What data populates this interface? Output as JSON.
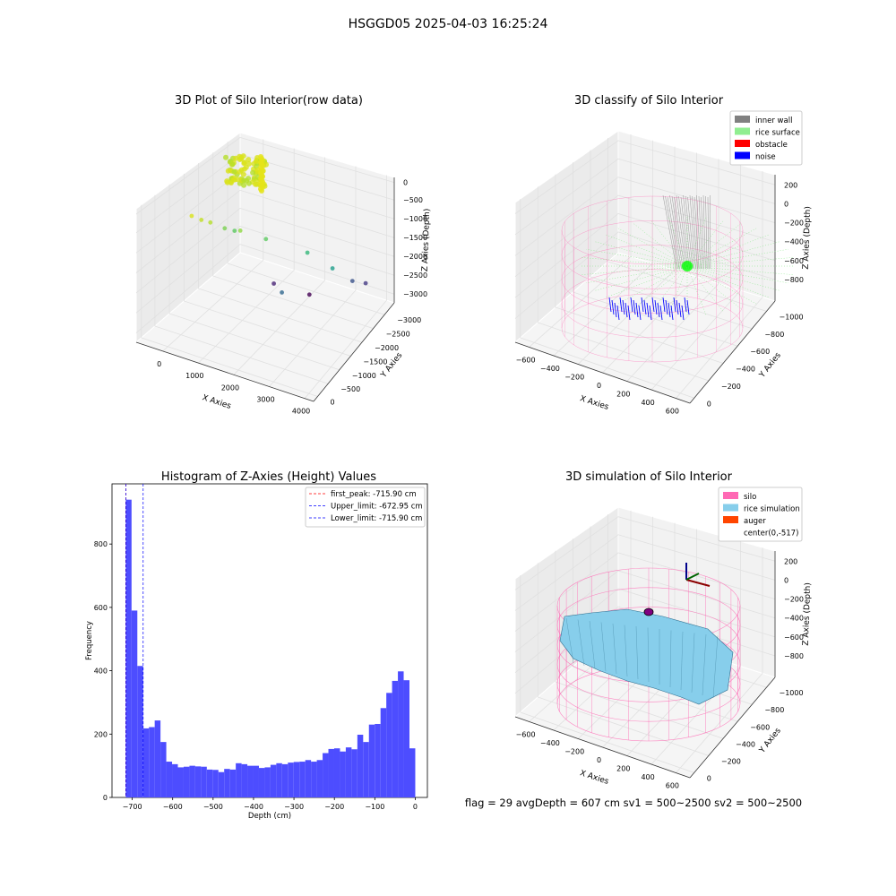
{
  "figure": {
    "suptitle": "HSGGD05 2025-04-03 16:25:24",
    "status_line": "flag = 29  avgDepth = 607 cm  sv1 = 500~2500  sv2 = 500~2500"
  },
  "chart_data": [
    {
      "type": "scatter",
      "subtype": "3d",
      "title": "3D Plot of Silo Interior(row data)",
      "xlabel": "X Axies",
      "ylabel": "Y Axies",
      "zlabel": "Z Axies (Depth)",
      "x_ticks": [
        "0",
        "1000",
        "2000",
        "3000",
        "4000"
      ],
      "y_ticks": [
        "0",
        "−500",
        "−1000",
        "−1500",
        "−2000",
        "−2500",
        "−3000"
      ],
      "z_ticks": [
        "0",
        "−500",
        "−1000",
        "−1500",
        "−2000",
        "−2500",
        "−3000"
      ],
      "colormap": "viridis",
      "points": [
        {
          "x": 400,
          "y": -200,
          "z": -100,
          "color": "#d9e21a"
        },
        {
          "x": 600,
          "y": -300,
          "z": -200,
          "color": "#c2df23"
        },
        {
          "x": 900,
          "y": -250,
          "z": -150,
          "color": "#b5de2b"
        },
        {
          "x": 1200,
          "y": -400,
          "z": -300,
          "color": "#7ad151"
        },
        {
          "x": 1500,
          "y": -600,
          "z": -400,
          "color": "#8fd744"
        },
        {
          "x": 1100,
          "y": -900,
          "z": -700,
          "color": "#5ec962"
        },
        {
          "x": 1800,
          "y": -1200,
          "z": -900,
          "color": "#5ec962"
        },
        {
          "x": 2600,
          "y": -1800,
          "z": -1400,
          "color": "#35b779"
        },
        {
          "x": 3000,
          "y": -2300,
          "z": -2000,
          "color": "#1f9e89"
        },
        {
          "x": 3400,
          "y": -2600,
          "z": -2400,
          "color": "#3b528b"
        },
        {
          "x": 3600,
          "y": -2900,
          "z": -2600,
          "color": "#443983"
        },
        {
          "x": 1500,
          "y": -2200,
          "z": -2900,
          "color": "#31688e"
        },
        {
          "x": 1000,
          "y": -2500,
          "z": -3000,
          "color": "#482475"
        },
        {
          "x": 2200,
          "y": -2400,
          "z": -2900,
          "color": "#440154"
        }
      ]
    },
    {
      "type": "scatter",
      "subtype": "3d",
      "title": "3D classify of Silo Interior",
      "xlabel": "X Axies",
      "ylabel": "Y Axies",
      "zlabel": "Z Axies (Depth)",
      "x_ticks": [
        "−600",
        "−400",
        "−200",
        "0",
        "200",
        "400",
        "600"
      ],
      "y_ticks": [
        "0",
        "−200",
        "−400",
        "−600",
        "−800",
        "−1000"
      ],
      "z_ticks": [
        "200",
        "0",
        "−200",
        "−400",
        "−600",
        "−800"
      ],
      "legend": [
        {
          "label": "inner wall",
          "color": "#808080"
        },
        {
          "label": "rice surface",
          "color": "#90ee90"
        },
        {
          "label": "obstacle",
          "color": "#ff0000"
        },
        {
          "label": "noise",
          "color": "#0000ff"
        }
      ],
      "legend_position": "top-right"
    },
    {
      "type": "bar",
      "subtype": "histogram",
      "title": "Histogram of Z-Axies (Height) Values",
      "xlabel": "Depth (cm)",
      "ylabel": "Frequency",
      "xlim": [
        -750,
        30
      ],
      "ylim": [
        0,
        990
      ],
      "x_ticks": [
        "−700",
        "−600",
        "−500",
        "−400",
        "−300",
        "−200",
        "−100",
        "0"
      ],
      "y_ticks": [
        "0",
        "200",
        "400",
        "600",
        "800"
      ],
      "bin_start": -716,
      "bin_width": 14.32,
      "bar_color": "#4d4dff",
      "values": [
        940,
        590,
        415,
        218,
        222,
        243,
        175,
        113,
        105,
        95,
        97,
        100,
        98,
        97,
        88,
        87,
        80,
        90,
        88,
        108,
        105,
        100,
        100,
        93,
        95,
        103,
        108,
        105,
        110,
        112,
        113,
        118,
        113,
        118,
        140,
        153,
        155,
        145,
        158,
        152,
        198,
        175,
        230,
        232,
        282,
        330,
        368,
        398,
        370,
        155
      ],
      "vlines": [
        {
          "label": "first_peak: -715.90 cm",
          "x": -715.9,
          "color": "#ff0000"
        },
        {
          "label": "Upper_limit: -672.95 cm",
          "x": -672.95,
          "color": "#0000ff"
        },
        {
          "label": "Lower_limit: -715.90 cm",
          "x": -715.9,
          "color": "#0000ff"
        }
      ],
      "legend_position": "top-right"
    },
    {
      "type": "area",
      "subtype": "3d-surface",
      "title": "3D simulation of Silo Interior",
      "xlabel": "X Axies",
      "ylabel": "Y Axies",
      "zlabel": "Z Axies (Depth)",
      "x_ticks": [
        "−600",
        "−400",
        "−200",
        "0",
        "200",
        "400",
        "600"
      ],
      "y_ticks": [
        "0",
        "−200",
        "−400",
        "−600",
        "−800",
        "−1000"
      ],
      "z_ticks": [
        "200",
        "0",
        "−200",
        "−400",
        "−600",
        "−800"
      ],
      "legend": [
        {
          "label": "silo",
          "color": "#ff69b4"
        },
        {
          "label": "rice simulation",
          "color": "#87ceeb"
        },
        {
          "label": "auger",
          "color": "#ff4500"
        },
        {
          "label": "center(0,-517)",
          "color": ""
        }
      ],
      "legend_position": "top-right"
    }
  ]
}
